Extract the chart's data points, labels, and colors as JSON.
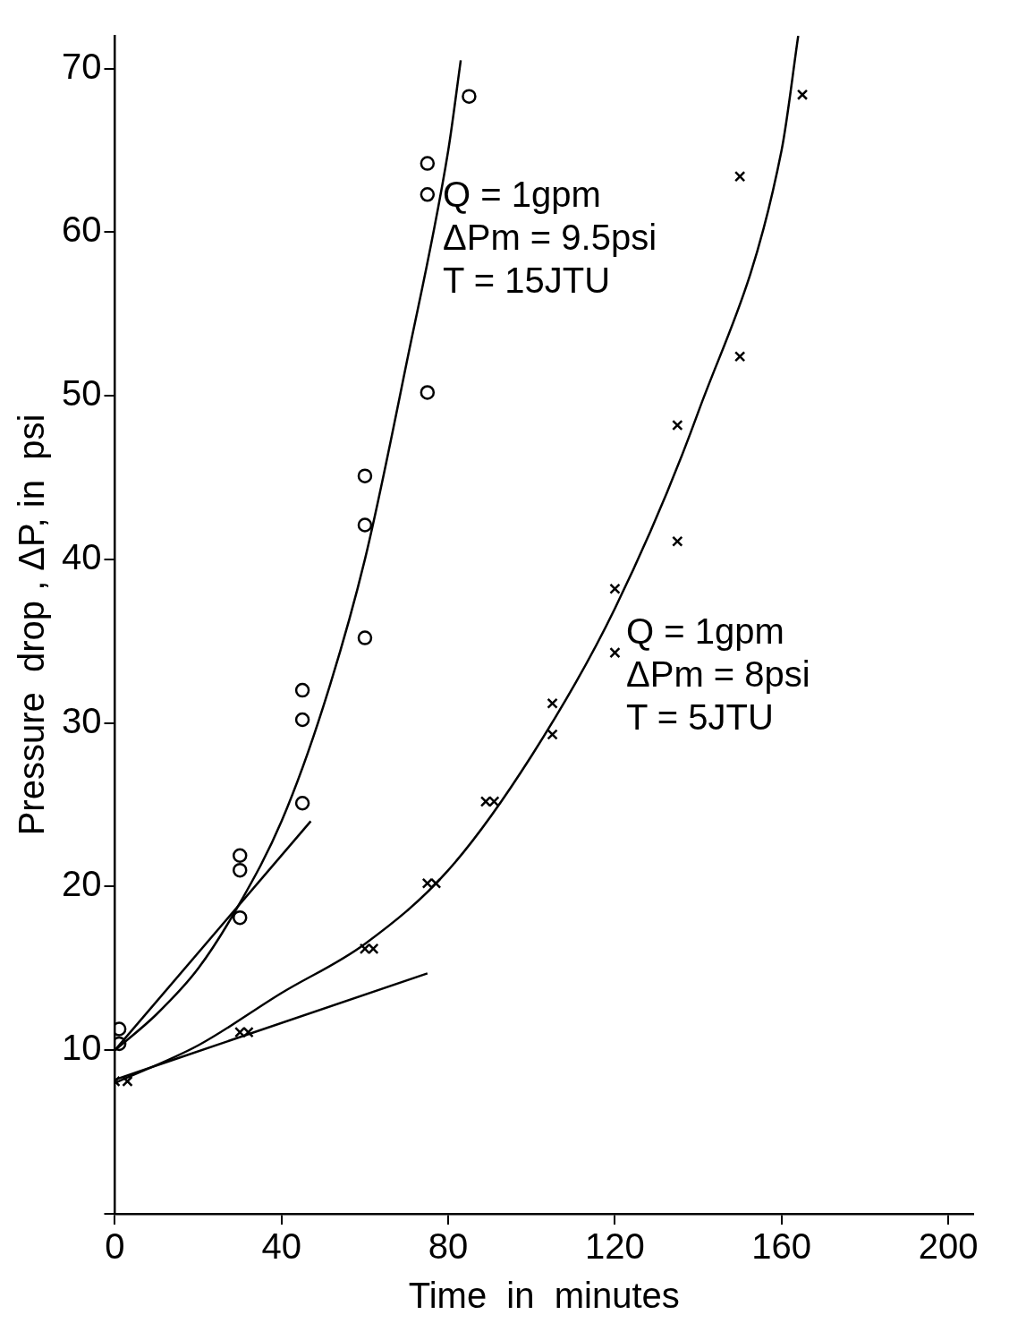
{
  "chart_data": {
    "type": "scatter",
    "xlabel": "Time  in  minutes",
    "ylabel": "Pressure  drop , ΔP, in  psi",
    "xlim": [
      0,
      206
    ],
    "ylim": [
      0,
      72
    ],
    "xticks": [
      0,
      40,
      80,
      120,
      160,
      200
    ],
    "yticks": [
      {
        "value": 0,
        "label": null
      },
      10,
      20,
      30,
      40,
      50,
      60,
      70
    ],
    "grid": false,
    "legend": false,
    "series": [
      {
        "marker": "circle",
        "color": "#000000",
        "x": [
          1,
          1,
          30,
          30,
          30,
          45,
          45,
          45,
          60,
          60,
          60,
          75,
          75,
          75,
          85
        ],
        "values": [
          11.3,
          10.4,
          21.9,
          21.0,
          18.1,
          32.0,
          30.2,
          25.1,
          45.1,
          42.1,
          35.2,
          64.2,
          62.3,
          50.2,
          68.3
        ]
      },
      {
        "marker": "cross",
        "color": "#000000",
        "x": [
          0,
          3,
          30,
          32,
          60,
          62,
          75,
          77,
          89,
          91,
          105,
          105,
          120,
          120,
          135,
          135,
          150,
          150,
          165
        ],
        "values": [
          8.1,
          8.1,
          11.1,
          11.1,
          16.2,
          16.2,
          20.2,
          20.2,
          25.2,
          25.2,
          31.2,
          29.3,
          38.2,
          34.3,
          48.2,
          41.1,
          63.4,
          52.4,
          68.4
        ]
      },
      {
        "type": "line",
        "marker": "none",
        "color": "#000000",
        "x": [
          0,
          10,
          20,
          30,
          40,
          50,
          60,
          70,
          80,
          83
        ],
        "values": [
          10,
          12.2,
          15,
          19,
          24,
          31,
          40,
          52,
          65,
          70.5
        ]
      },
      {
        "type": "line",
        "marker": "none",
        "color": "#000000",
        "x": [
          0,
          47
        ],
        "values": [
          10,
          24
        ]
      },
      {
        "type": "line",
        "marker": "none",
        "color": "#000000",
        "x": [
          0,
          20,
          40,
          60,
          80,
          100,
          120,
          140,
          160,
          164
        ],
        "values": [
          8,
          10.3,
          13.5,
          16.5,
          21,
          28,
          37,
          49,
          65,
          72
        ]
      },
      {
        "type": "line",
        "marker": "none",
        "color": "#000000",
        "x": [
          0,
          75
        ],
        "values": [
          8.2,
          14.7
        ]
      }
    ],
    "annotations": [
      "Q = 1gpm\nΔPm = 9.5psi\nT = 15JTU",
      "Q = 1gpm\nΔPm = 8psi\nT = 5JTU"
    ]
  }
}
